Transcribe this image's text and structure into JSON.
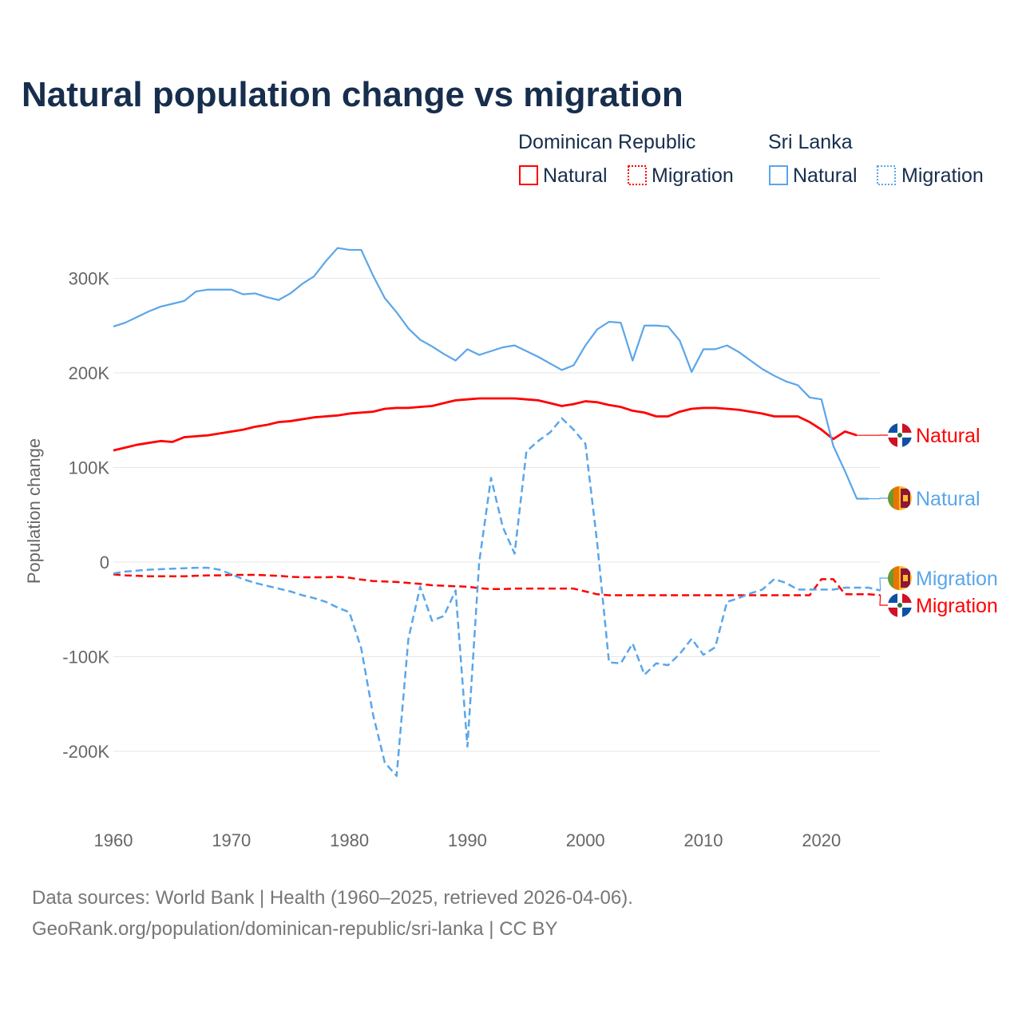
{
  "title": "Natural population change vs migration",
  "legend": {
    "groups": [
      {
        "country": "Dominican Republic",
        "items": [
          "Natural",
          "Migration"
        ],
        "color": "#ff0000"
      },
      {
        "country": "Sri Lanka",
        "items": [
          "Natural",
          "Migration"
        ],
        "color": "#5aa6ea"
      }
    ]
  },
  "footer": {
    "line1": "Data sources: World Bank | Health (1960–2025, retrieved 2026-04-06).",
    "line2": "GeoRank.org/population/dominican-republic/sri-lanka | CC BY"
  },
  "chart_data": {
    "type": "line",
    "title": "Natural population change vs migration",
    "xlabel": "",
    "ylabel": "Population change",
    "xlim": [
      1960,
      2025
    ],
    "ylim": [
      -250000,
      330000
    ],
    "x_ticks": [
      1960,
      1970,
      1980,
      1990,
      2000,
      2010,
      2020
    ],
    "x_tick_labels": [
      "1960",
      "1970",
      "1980",
      "1990",
      "2000",
      "2010",
      "2020"
    ],
    "y_ticks": [
      300000,
      200000,
      100000,
      0,
      -100000,
      -200000
    ],
    "y_tick_labels": [
      "300K",
      "200K",
      "100K",
      "0",
      "-100K",
      "-200K"
    ],
    "grid": true,
    "legend_position": "top-right",
    "start_year": 1960,
    "series": [
      {
        "name": "Dominican Republic Natural",
        "end_label": "Natural",
        "flag": "dominican-republic",
        "color": "#ff0000",
        "dash": "solid",
        "values": [
          118000,
          121000,
          124000,
          126000,
          128000,
          127000,
          132000,
          133000,
          134000,
          136000,
          138000,
          140000,
          143000,
          145000,
          148000,
          149000,
          151000,
          153000,
          154000,
          155000,
          157000,
          158000,
          159000,
          162000,
          163000,
          163000,
          164000,
          165000,
          168000,
          171000,
          172000,
          173000,
          173000,
          173000,
          173000,
          172000,
          171000,
          168000,
          165000,
          167000,
          170000,
          169000,
          166000,
          164000,
          160000,
          158000,
          154000,
          154000,
          159000,
          162000,
          163000,
          163000,
          162000,
          161000,
          159000,
          157000,
          154000,
          154000,
          154000,
          148000,
          140000,
          130000,
          138000,
          134000
        ]
      },
      {
        "name": "Dominican Republic Migration",
        "end_label": "Migration",
        "flag": "dominican-republic",
        "color": "#ff0000",
        "dash": "dashed",
        "values": [
          -13000,
          -14000,
          -14500,
          -15000,
          -15000,
          -15000,
          -15000,
          -14500,
          -14000,
          -14000,
          -13500,
          -13500,
          -13500,
          -14000,
          -14500,
          -15500,
          -16000,
          -16000,
          -16000,
          -15500,
          -16500,
          -18500,
          -20000,
          -20500,
          -21000,
          -22000,
          -23000,
          -24500,
          -25000,
          -25500,
          -26000,
          -27500,
          -28500,
          -28500,
          -28000,
          -28000,
          -28000,
          -28000,
          -28000,
          -28000,
          -31000,
          -34000,
          -35000,
          -35000,
          -35000,
          -35000,
          -35000,
          -35000,
          -35000,
          -35000,
          -35000,
          -35000,
          -35000,
          -35000,
          -35000,
          -35000,
          -35000,
          -35000,
          -35000,
          -35000,
          -18000,
          -18000,
          -34000,
          -34000,
          -34000,
          -35000
        ]
      },
      {
        "name": "Sri Lanka Natural",
        "end_label": "Natural",
        "flag": "sri-lanka",
        "color": "#5aa6ea",
        "dash": "solid",
        "values": [
          249000,
          253000,
          259000,
          265000,
          270000,
          273000,
          276000,
          286000,
          288000,
          288000,
          288000,
          283000,
          284000,
          280000,
          277000,
          284000,
          294000,
          302000,
          318000,
          332000,
          330000,
          330000,
          303000,
          279000,
          264000,
          247000,
          235000,
          228000,
          220000,
          213000,
          225000,
          219000,
          223000,
          227000,
          229000,
          223000,
          217000,
          210000,
          203000,
          208000,
          229000,
          246000,
          254000,
          253000,
          213000,
          250000,
          250000,
          249000,
          234000,
          201000,
          225000,
          225000,
          229000,
          222000,
          213000,
          204000,
          197000,
          191000,
          187000,
          174000,
          172000,
          123000,
          96000,
          67000,
          67000
        ]
      },
      {
        "name": "Sri Lanka Migration",
        "end_label": "Migration",
        "flag": "sri-lanka",
        "color": "#5aa6ea",
        "dash": "dashed",
        "values": [
          -12000,
          -10000,
          -9000,
          -8000,
          -7500,
          -7000,
          -6500,
          -6000,
          -6000,
          -8000,
          -13000,
          -18000,
          -22000,
          -25000,
          -28000,
          -31000,
          -35000,
          -38000,
          -42000,
          -48000,
          -53000,
          -91000,
          -161000,
          -212000,
          -226000,
          -81000,
          -26000,
          -62000,
          -57000,
          -30000,
          -195000,
          0,
          89000,
          37000,
          9000,
          117000,
          128000,
          137000,
          152000,
          140000,
          125000,
          20000,
          -106000,
          -107000,
          -86000,
          -119000,
          -107000,
          -109000,
          -97000,
          -81000,
          -98000,
          -90000,
          -42000,
          -38000,
          -33000,
          -29000,
          -18000,
          -22000,
          -29000,
          -29000,
          -29000,
          -29000,
          -27000,
          -27000,
          -27000,
          -30000
        ]
      }
    ]
  }
}
